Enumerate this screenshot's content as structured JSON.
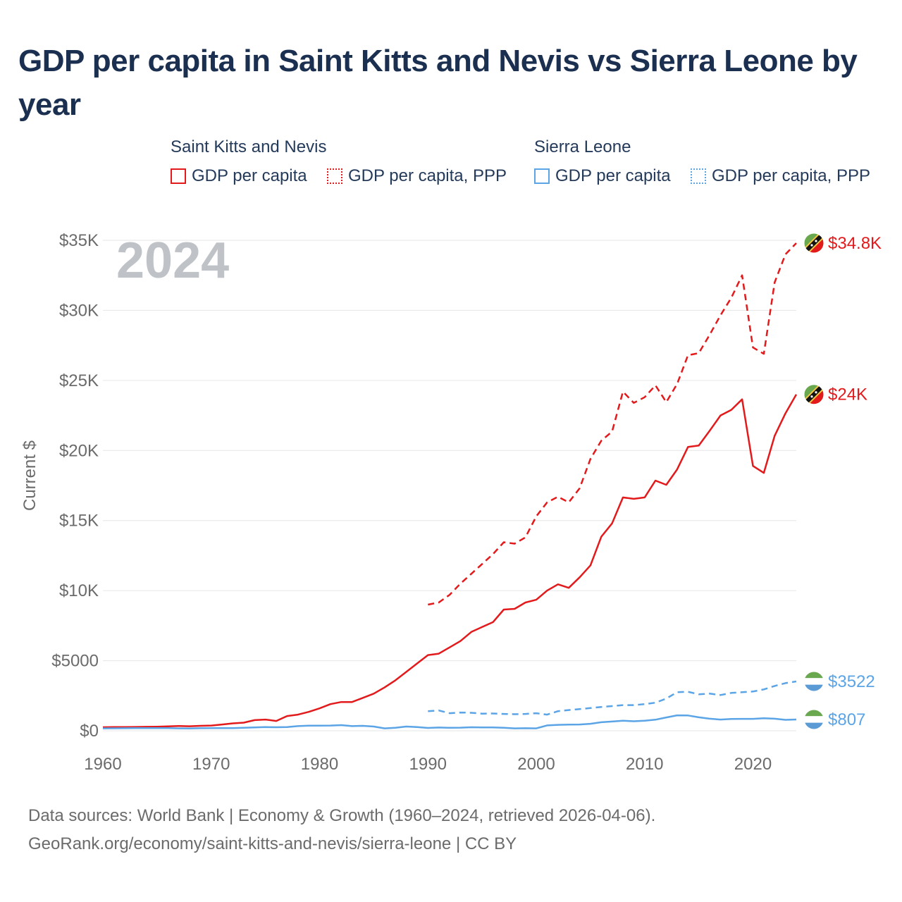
{
  "title": "GDP per capita in Saint Kitts and Nevis vs Sierra Leone by year",
  "legend": {
    "groups": [
      {
        "name": "Saint Kitts and Nevis",
        "items": [
          "GDP per capita",
          "GDP per capita, PPP"
        ],
        "color": "#e31a1c"
      },
      {
        "name": "Sierra Leone",
        "items": [
          "GDP per capita",
          "GDP per capita, PPP"
        ],
        "color": "#5ba4e6"
      }
    ]
  },
  "source": {
    "line1": "Data sources: World Bank | Economy & Growth (1960–2024, retrieved 2026-04-06).",
    "line2": "GeoRank.org/economy/saint-kitts-and-nevis/sierra-leone | CC BY"
  },
  "chart_data": {
    "type": "line",
    "title": "GDP per capita in Saint Kitts and Nevis vs Sierra Leone by year",
    "watermark_year": "2024",
    "xlabel": "",
    "ylabel": "Current $",
    "xlim": [
      1960,
      2024
    ],
    "ylim": [
      0,
      35000
    ],
    "x_ticks": [
      1960,
      1970,
      1980,
      1990,
      2000,
      2010,
      2020
    ],
    "x_tick_labels": [
      "1960",
      "1970",
      "1980",
      "1990",
      "2000",
      "2010",
      "2020"
    ],
    "y_ticks": [
      0,
      5000,
      10000,
      15000,
      20000,
      25000,
      30000,
      35000
    ],
    "y_tick_labels": [
      "$0",
      "$5000",
      "$10K",
      "$15K",
      "$20K",
      "$25K",
      "$30K",
      "$35K"
    ],
    "grid": true,
    "series": [
      {
        "name": "Saint Kitts and Nevis — GDP per capita",
        "color": "#e31a1c",
        "dash": "solid",
        "end_label": "$24K",
        "flag": "saint-kitts-and-nevis",
        "x": [
          1960,
          1961,
          1962,
          1963,
          1964,
          1965,
          1966,
          1967,
          1968,
          1969,
          1970,
          1971,
          1972,
          1973,
          1974,
          1975,
          1976,
          1977,
          1978,
          1979,
          1980,
          1981,
          1982,
          1983,
          1984,
          1985,
          1986,
          1987,
          1988,
          1989,
          1990,
          1991,
          1992,
          1993,
          1994,
          1995,
          1996,
          1997,
          1998,
          1999,
          2000,
          2001,
          2002,
          2003,
          2004,
          2005,
          2006,
          2007,
          2008,
          2009,
          2010,
          2011,
          2012,
          2013,
          2014,
          2015,
          2016,
          2017,
          2018,
          2019,
          2020,
          2021,
          2022,
          2023,
          2024
        ],
        "values": [
          250,
          260,
          265,
          270,
          280,
          290,
          310,
          340,
          320,
          350,
          370,
          450,
          530,
          580,
          760,
          800,
          700,
          1050,
          1150,
          1350,
          1600,
          1900,
          2050,
          2050,
          2350,
          2650,
          3100,
          3600,
          4200,
          4800,
          5400,
          5500,
          5950,
          6400,
          7050,
          7400,
          7750,
          8650,
          8700,
          9150,
          9350,
          10000,
          10450,
          10200,
          10950,
          11800,
          13850,
          14800,
          16650,
          16550,
          16650,
          17850,
          17550,
          18650,
          20250,
          20350,
          21400,
          22500,
          22900,
          23650,
          18900,
          18400,
          21050,
          22650,
          24000
        ]
      },
      {
        "name": "Saint Kitts and Nevis — GDP per capita, PPP",
        "color": "#e31a1c",
        "dash": "dashed",
        "end_label": "$34.8K",
        "flag": "saint-kitts-and-nevis",
        "x": [
          1990,
          1991,
          1992,
          1993,
          1994,
          1995,
          1996,
          1997,
          1998,
          1999,
          2000,
          2001,
          2002,
          2003,
          2004,
          2005,
          2006,
          2007,
          2008,
          2009,
          2010,
          2011,
          2012,
          2013,
          2014,
          2015,
          2016,
          2017,
          2018,
          2019,
          2020,
          2021,
          2022,
          2023,
          2024
        ],
        "values": [
          9000,
          9150,
          9700,
          10500,
          11200,
          11900,
          12600,
          13450,
          13350,
          13800,
          15300,
          16300,
          16700,
          16300,
          17300,
          19400,
          20700,
          21350,
          24200,
          23400,
          23800,
          24650,
          23450,
          24750,
          26800,
          26950,
          28250,
          29650,
          30900,
          32500,
          27350,
          26900,
          32000,
          34000,
          34800
        ]
      },
      {
        "name": "Sierra Leone — GDP per capita",
        "color": "#5ba4e6",
        "dash": "solid",
        "end_label": "$807",
        "flag": "sierra-leone",
        "x": [
          1960,
          1961,
          1962,
          1963,
          1964,
          1965,
          1966,
          1967,
          1968,
          1969,
          1970,
          1971,
          1972,
          1973,
          1974,
          1975,
          1976,
          1977,
          1978,
          1979,
          1980,
          1981,
          1982,
          1983,
          1984,
          1985,
          1986,
          1987,
          1988,
          1989,
          1990,
          1991,
          1992,
          1993,
          1994,
          1995,
          1996,
          1997,
          1998,
          1999,
          2000,
          2001,
          2002,
          2003,
          2004,
          2005,
          2006,
          2007,
          2008,
          2009,
          2010,
          2011,
          2012,
          2013,
          2014,
          2015,
          2016,
          2017,
          2018,
          2019,
          2020,
          2021,
          2022,
          2023,
          2024
        ],
        "values": [
          170,
          175,
          180,
          185,
          185,
          190,
          190,
          170,
          160,
          180,
          190,
          190,
          190,
          210,
          240,
          260,
          250,
          260,
          330,
          360,
          360,
          370,
          400,
          330,
          350,
          300,
          170,
          210,
          300,
          260,
          200,
          230,
          210,
          220,
          250,
          240,
          240,
          210,
          170,
          180,
          170,
          380,
          420,
          440,
          450,
          500,
          610,
          660,
          720,
          680,
          720,
          790,
          950,
          1100,
          1090,
          960,
          860,
          800,
          840,
          850,
          850,
          890,
          860,
          780,
          807
        ]
      },
      {
        "name": "Sierra Leone — GDP per capita, PPP",
        "color": "#5ba4e6",
        "dash": "dashed",
        "end_label": "$3522",
        "flag": "sierra-leone",
        "x": [
          1990,
          1991,
          1992,
          1993,
          1994,
          1995,
          1996,
          1997,
          1998,
          1999,
          2000,
          2001,
          2002,
          2003,
          2004,
          2005,
          2006,
          2007,
          2008,
          2009,
          2010,
          2011,
          2012,
          2013,
          2014,
          2015,
          2016,
          2017,
          2018,
          2019,
          2020,
          2021,
          2022,
          2023,
          2024
        ],
        "values": [
          1400,
          1450,
          1250,
          1300,
          1280,
          1220,
          1230,
          1200,
          1180,
          1200,
          1250,
          1150,
          1400,
          1480,
          1550,
          1620,
          1700,
          1760,
          1830,
          1830,
          1900,
          2000,
          2300,
          2750,
          2780,
          2600,
          2650,
          2550,
          2700,
          2750,
          2800,
          2950,
          3200,
          3400,
          3522
        ]
      }
    ]
  }
}
